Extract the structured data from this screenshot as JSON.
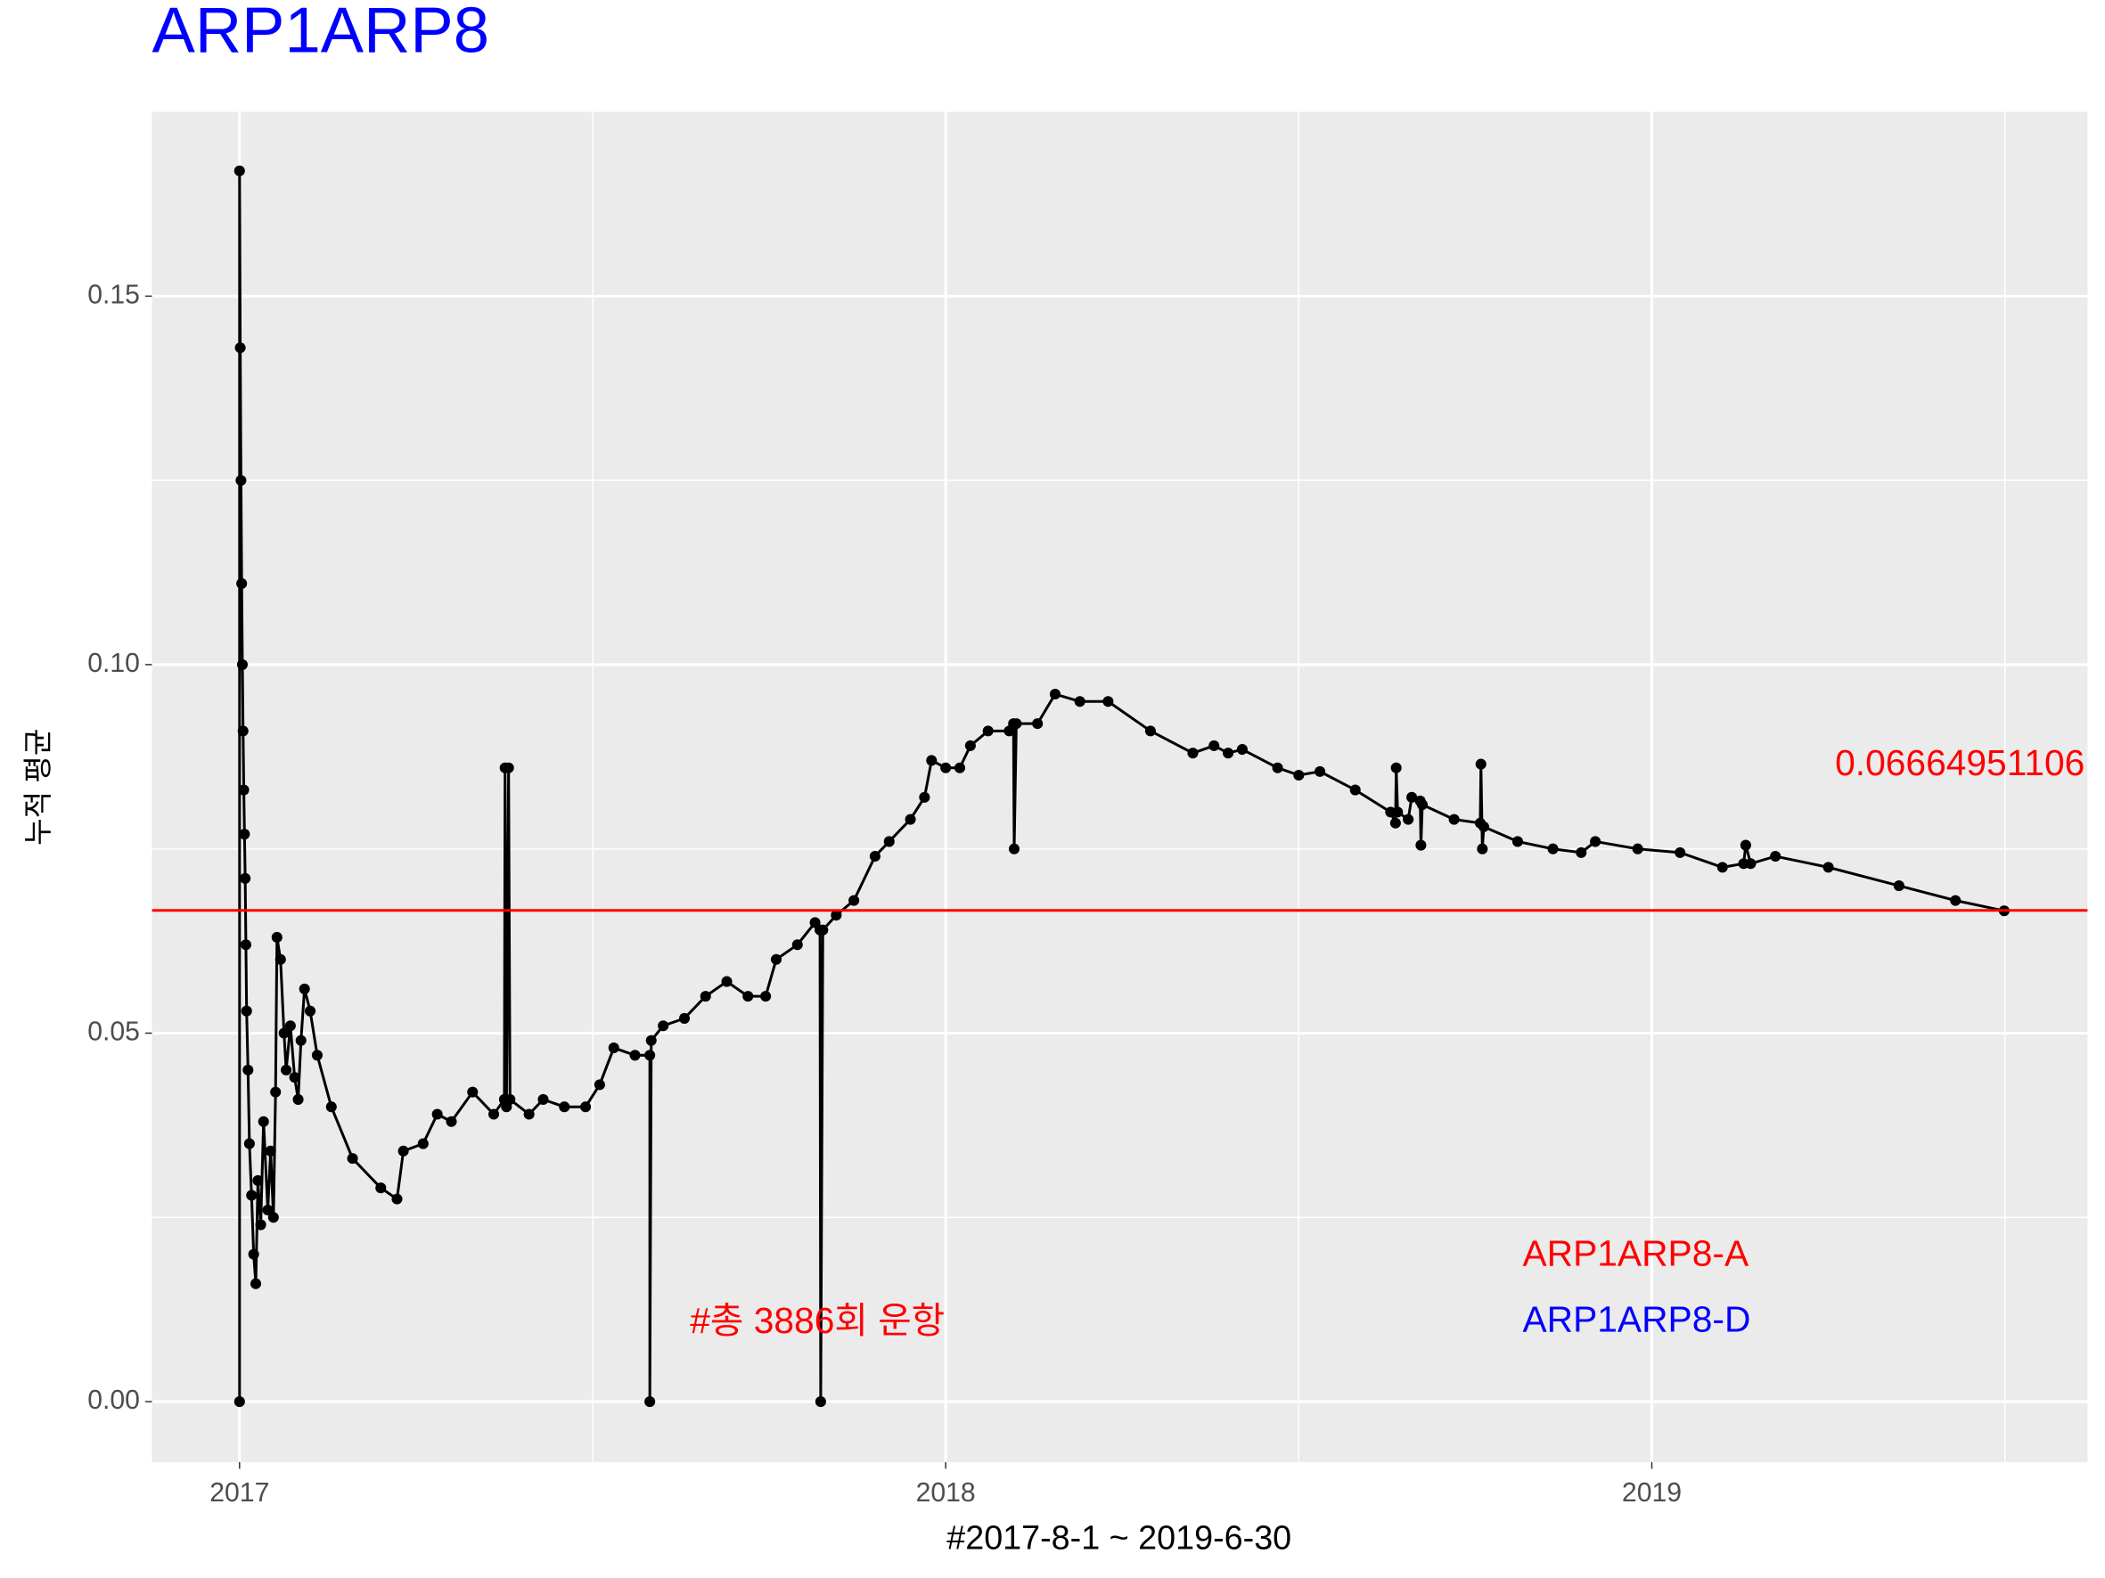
{
  "chart_data": {
    "type": "line",
    "title": "ARP1ARP8",
    "title_color": "#0000ff",
    "x_label": "#2017-8-1 ~ 2019-6-30",
    "y_label": "누적 평균",
    "xlim": [
      2016.876,
      2019.617
    ],
    "ylim": [
      -0.0082,
      0.175
    ],
    "xticks": [
      2017,
      2018,
      2019
    ],
    "yticks": [
      {
        "value": 0,
        "label": "0.00"
      },
      {
        "value": 0.05,
        "label": "0.05"
      },
      {
        "value": 0.1,
        "label": "0.10"
      },
      {
        "value": 0.15,
        "label": "0.15"
      }
    ],
    "x_minor_ticks": [
      2017.5,
      2018.5,
      2019.5
    ],
    "y_minor_ticks": [
      0.025,
      0.075,
      0.125
    ],
    "grid": true,
    "hline": {
      "value": 0.06664951106,
      "color": "#ff0000"
    },
    "annotations": [
      {
        "text": "#총 3886회 운항",
        "color": "#ff0000"
      },
      {
        "text": "ARP1ARP8-A",
        "color": "#ff0000"
      },
      {
        "text": "ARP1ARP8-D",
        "color": "#0000ff"
      }
    ],
    "series": [
      {
        "color": "#000000",
        "x": [
          2017.0,
          2017.0,
          2017.001,
          2017.002,
          2017.003,
          2017.004,
          2017.005,
          2017.006,
          2017.007,
          2017.008,
          2017.009,
          2017.01,
          2017.012,
          2017.014,
          2017.017,
          2017.02,
          2017.023,
          2017.026,
          2017.03,
          2017.034,
          2017.04,
          2017.044,
          2017.048,
          2017.051,
          2017.053,
          2017.058,
          2017.063,
          2017.066,
          2017.072,
          2017.078,
          2017.083,
          2017.087,
          2017.092,
          2017.1,
          2017.11,
          2017.13,
          2017.16,
          2017.2,
          2017.223,
          2017.232,
          2017.26,
          2017.28,
          2017.3,
          2017.33,
          2017.36,
          2017.375,
          2017.376,
          2017.378,
          2017.381,
          2017.383,
          2017.41,
          2017.43,
          2017.46,
          2017.49,
          2017.51,
          2017.53,
          2017.56,
          2017.581,
          2017.581,
          2017.583,
          2017.6,
          2017.63,
          2017.66,
          2017.69,
          2017.72,
          2017.745,
          2017.76,
          2017.79,
          2017.815,
          2017.822,
          2017.823,
          2017.826,
          2017.845,
          2017.87,
          2017.9,
          2017.92,
          2017.95,
          2017.97,
          2017.98,
          2018.0,
          2018.02,
          2018.035,
          2018.06,
          2018.09,
          2018.096,
          2018.097,
          2018.1,
          2018.13,
          2018.155,
          2018.19,
          2018.23,
          2018.29,
          2018.35,
          2018.38,
          2018.4,
          2018.42,
          2018.47,
          2018.5,
          2018.53,
          2018.58,
          2018.63,
          2018.637,
          2018.638,
          2018.64,
          2018.655,
          2018.66,
          2018.672,
          2018.673,
          2018.675,
          2018.72,
          2018.757,
          2018.758,
          2018.76,
          2018.762,
          2018.81,
          2018.86,
          2018.9,
          2018.92,
          2018.98,
          2019.04,
          2019.1,
          2019.13,
          2019.133,
          2019.14,
          2019.175,
          2019.25,
          2019.35,
          2019.43,
          2019.499
        ],
        "values": [
          0,
          0.167,
          0.143,
          0.125,
          0.111,
          0.1,
          0.091,
          0.083,
          0.077,
          0.071,
          0.062,
          0.053,
          0.045,
          0.035,
          0.028,
          0.02,
          0.016,
          0.03,
          0.024,
          0.038,
          0.026,
          0.034,
          0.025,
          0.042,
          0.063,
          0.06,
          0.05,
          0.045,
          0.051,
          0.044,
          0.041,
          0.049,
          0.056,
          0.053,
          0.047,
          0.04,
          0.033,
          0.029,
          0.0275,
          0.034,
          0.035,
          0.039,
          0.038,
          0.042,
          0.039,
          0.041,
          0.086,
          0.04,
          0.086,
          0.041,
          0.039,
          0.041,
          0.04,
          0.04,
          0.043,
          0.048,
          0.047,
          0.047,
          0,
          0.049,
          0.051,
          0.052,
          0.055,
          0.057,
          0.055,
          0.055,
          0.06,
          0.062,
          0.065,
          0.064,
          0,
          0.064,
          0.066,
          0.068,
          0.074,
          0.076,
          0.079,
          0.082,
          0.087,
          0.086,
          0.086,
          0.089,
          0.091,
          0.091,
          0.092,
          0.075,
          0.092,
          0.092,
          0.096,
          0.095,
          0.095,
          0.091,
          0.088,
          0.089,
          0.088,
          0.0885,
          0.086,
          0.085,
          0.0855,
          0.083,
          0.08,
          0.0785,
          0.086,
          0.08,
          0.079,
          0.082,
          0.0815,
          0.0755,
          0.081,
          0.079,
          0.0785,
          0.0865,
          0.075,
          0.078,
          0.076,
          0.075,
          0.0745,
          0.076,
          0.075,
          0.0745,
          0.0725,
          0.073,
          0.0755,
          0.073,
          0.074,
          0.0725,
          0.07,
          0.068,
          0.0666
        ]
      }
    ]
  }
}
